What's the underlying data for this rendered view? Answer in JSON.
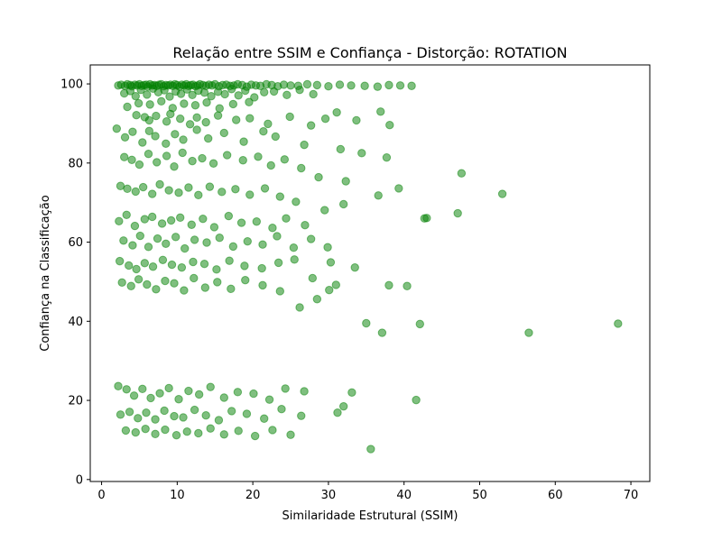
{
  "chart_data": {
    "type": "scatter",
    "title": "Relação entre SSIM e Confiança - Distorção: ROTATION",
    "xlabel": "Similaridade Estrutural (SSIM)",
    "ylabel": "Confiança na Classificação",
    "xlim": [
      -1.5,
      72.5
    ],
    "ylim": [
      -0.5,
      104.8
    ],
    "xticks": [
      0,
      10,
      20,
      30,
      40,
      50,
      60,
      70
    ],
    "yticks": [
      0,
      20,
      40,
      60,
      80,
      100
    ],
    "grid": false,
    "legend": "none",
    "marker_color": "#008000",
    "marker_alpha": 0.5,
    "series": [
      {
        "x": [
          2.2,
          2.6,
          3.1,
          3.4,
          3.8,
          4.0,
          4.4,
          4.7,
          5.0,
          5.3,
          5.6,
          5.9,
          6.1,
          6.4,
          6.7,
          7.0,
          7.3,
          7.6,
          7.9,
          8.2,
          8.5,
          8.8,
          9.1,
          9.4,
          9.7,
          10.0,
          10.3,
          10.6,
          10.9,
          11.2,
          11.5,
          11.8,
          12.1,
          12.4,
          12.7,
          13.0,
          13.4,
          13.8,
          14.2,
          14.6,
          15.0,
          15.5,
          16.0,
          16.5,
          17.0,
          17.5,
          18.0,
          18.6,
          19.2,
          19.8,
          20.4,
          21.0,
          21.8,
          22.5,
          23.3,
          24.1,
          25.0,
          26.0,
          27.2,
          28.5,
          30.0,
          31.5,
          33.0,
          34.8,
          36.5,
          38.0,
          39.5,
          41.0,
          3.0,
          3.8,
          4.5,
          5.2,
          6.0,
          6.8,
          7.5,
          8.3,
          9.0,
          9.8,
          10.5,
          11.3,
          12.0,
          12.8,
          13.6,
          14.5,
          15.4,
          16.3,
          17.2,
          18.1,
          19.0,
          20.2,
          21.5,
          22.8,
          24.5,
          26.2,
          28.0,
          3.4,
          4.9,
          6.4,
          7.9,
          9.4,
          10.9,
          12.4,
          13.9,
          15.6,
          17.4,
          19.5,
          4.6,
          5.7,
          6.3,
          7.2,
          8.6,
          9.1,
          10.4,
          11.7,
          12.6,
          13.8,
          15.4,
          17.8,
          19.6,
          22.0,
          24.9,
          27.7,
          29.6,
          31.1,
          33.7,
          36.9,
          38.1,
          2.0,
          3.1,
          4.1,
          5.4,
          6.3,
          7.1,
          8.5,
          9.7,
          10.8,
          12.6,
          14.1,
          16.2,
          18.8,
          21.4,
          23.0,
          26.8,
          31.6,
          3.0,
          4.0,
          5.0,
          6.2,
          7.3,
          8.6,
          9.6,
          10.7,
          12.0,
          13.3,
          14.8,
          16.6,
          18.7,
          20.7,
          22.4,
          24.2,
          26.4,
          28.7,
          32.3,
          34.4,
          37.7,
          39.3,
          42.7,
          47.1,
          53.0,
          2.5,
          3.4,
          4.5,
          5.5,
          6.7,
          7.7,
          8.9,
          10.2,
          11.5,
          12.8,
          14.3,
          15.9,
          17.7,
          19.6,
          21.6,
          23.6,
          25.7,
          29.5,
          32.0,
          36.6,
          43.0,
          47.6,
          2.3,
          3.3,
          4.4,
          5.7,
          6.7,
          8.0,
          9.2,
          10.4,
          11.9,
          13.4,
          14.9,
          16.8,
          18.5,
          20.5,
          22.6,
          24.4,
          26.9,
          29.9,
          2.9,
          4.1,
          5.1,
          6.2,
          7.4,
          8.5,
          9.8,
          11.0,
          12.3,
          13.9,
          15.6,
          17.4,
          19.3,
          21.3,
          23.2,
          25.4,
          27.7,
          30.3,
          33.5,
          38.0,
          40.4,
          2.4,
          3.6,
          4.6,
          5.7,
          6.8,
          8.1,
          9.3,
          10.6,
          12.1,
          13.6,
          15.2,
          16.9,
          18.9,
          21.2,
          23.4,
          25.5,
          27.9,
          31.0,
          35.0,
          37.1,
          42.1,
          56.5,
          68.3,
          2.7,
          3.9,
          4.9,
          6.0,
          7.2,
          8.4,
          9.6,
          10.9,
          12.2,
          13.7,
          15.3,
          17.1,
          19.0,
          21.3,
          23.6,
          26.2,
          28.5,
          30.1,
          2.2,
          3.3,
          4.3,
          5.4,
          6.5,
          7.7,
          8.9,
          10.2,
          11.5,
          12.9,
          14.4,
          16.2,
          18.0,
          20.1,
          22.2,
          24.3,
          26.8,
          31.2,
          33.1,
          41.6,
          2.5,
          3.7,
          4.8,
          5.9,
          7.1,
          8.3,
          9.6,
          10.8,
          12.3,
          13.8,
          15.5,
          17.2,
          19.2,
          21.5,
          23.8,
          26.4,
          32.0,
          3.2,
          4.5,
          5.8,
          7.1,
          8.4,
          9.9,
          11.3,
          12.8,
          14.4,
          16.2,
          18.1,
          20.3,
          22.6,
          25.0,
          35.6
        ],
        "y": [
          99.6,
          99.8,
          99.5,
          99.9,
          99.7,
          99.4,
          99.8,
          99.6,
          99.9,
          99.5,
          99.7,
          99.8,
          99.3,
          99.9,
          99.6,
          99.7,
          99.5,
          99.8,
          99.9,
          99.4,
          99.7,
          99.6,
          99.8,
          99.5,
          99.9,
          99.7,
          99.3,
          99.8,
          99.6,
          99.9,
          99.5,
          99.7,
          99.8,
          99.4,
          99.6,
          99.9,
          99.7,
          99.5,
          99.8,
          99.6,
          99.9,
          99.4,
          99.7,
          99.8,
          99.5,
          99.6,
          99.9,
          99.7,
          99.3,
          99.8,
          99.6,
          99.5,
          99.9,
          99.7,
          99.4,
          99.8,
          99.6,
          99.5,
          99.9,
          99.7,
          99.4,
          99.8,
          99.6,
          99.5,
          99.3,
          99.7,
          99.6,
          99.5,
          97.6,
          98.2,
          96.9,
          98.5,
          97.3,
          98.8,
          97.9,
          98.4,
          96.8,
          98.1,
          97.5,
          98.6,
          97.2,
          98.3,
          97.8,
          96.9,
          98.0,
          97.4,
          98.7,
          97.1,
          98.3,
          96.6,
          97.9,
          98.1,
          97.2,
          98.5,
          97.4,
          94.2,
          95.1,
          94.8,
          95.6,
          93.9,
          95.0,
          94.6,
          95.3,
          93.8,
          94.9,
          95.4,
          92.1,
          91.6,
          90.8,
          91.9,
          90.5,
          92.4,
          91.2,
          89.8,
          91.5,
          90.3,
          92.0,
          90.9,
          91.3,
          89.9,
          91.7,
          89.5,
          91.2,
          92.8,
          90.8,
          93.0,
          89.6,
          88.7,
          86.5,
          87.9,
          85.2,
          88.1,
          86.8,
          84.9,
          87.3,
          85.9,
          88.4,
          86.2,
          87.6,
          85.4,
          88.0,
          86.7,
          84.6,
          83.5,
          81.5,
          80.8,
          79.6,
          82.3,
          80.2,
          81.8,
          79.1,
          82.6,
          80.5,
          81.2,
          79.9,
          82.0,
          80.7,
          81.6,
          79.4,
          80.9,
          78.7,
          76.4,
          75.4,
          82.5,
          81.4,
          73.6,
          66.0,
          67.3,
          72.2,
          74.2,
          73.5,
          72.8,
          73.9,
          72.2,
          74.6,
          73.1,
          72.5,
          73.8,
          71.9,
          74.0,
          72.7,
          73.4,
          72.0,
          73.6,
          71.5,
          70.2,
          68.1,
          69.6,
          71.8,
          66.1,
          77.4,
          65.3,
          66.9,
          64.1,
          65.8,
          66.4,
          64.7,
          65.5,
          66.2,
          64.4,
          65.9,
          63.8,
          66.6,
          64.9,
          65.2,
          63.6,
          66.0,
          64.3,
          58.7,
          60.4,
          59.2,
          61.6,
          58.8,
          60.9,
          59.6,
          61.3,
          58.4,
          60.6,
          59.9,
          61.1,
          58.9,
          60.2,
          59.4,
          61.5,
          58.6,
          60.8,
          54.9,
          53.6,
          49.1,
          48.9,
          55.2,
          54.1,
          53.2,
          54.7,
          53.8,
          55.5,
          54.3,
          53.6,
          55.0,
          54.5,
          53.1,
          55.3,
          54.0,
          53.4,
          54.8,
          55.6,
          50.9,
          49.2,
          39.5,
          37.1,
          39.3,
          37.1,
          39.4,
          49.8,
          48.9,
          50.6,
          49.3,
          48.1,
          50.2,
          49.6,
          47.8,
          50.9,
          48.5,
          49.9,
          48.2,
          50.4,
          49.1,
          47.6,
          43.5,
          45.6,
          47.9,
          23.6,
          22.8,
          21.2,
          22.9,
          20.6,
          21.8,
          23.1,
          20.3,
          22.4,
          21.5,
          23.4,
          20.7,
          22.1,
          21.7,
          20.2,
          23.0,
          22.3,
          16.9,
          22.0,
          20.1,
          16.4,
          17.1,
          15.5,
          16.9,
          15.2,
          17.4,
          16.0,
          15.7,
          17.6,
          16.2,
          15.0,
          17.3,
          16.6,
          15.4,
          17.8,
          16.1,
          18.5,
          12.4,
          11.9,
          12.8,
          11.5,
          12.6,
          11.2,
          12.1,
          11.7,
          12.9,
          11.4,
          12.3,
          11.0,
          12.5,
          11.3,
          7.7
        ]
      }
    ]
  }
}
